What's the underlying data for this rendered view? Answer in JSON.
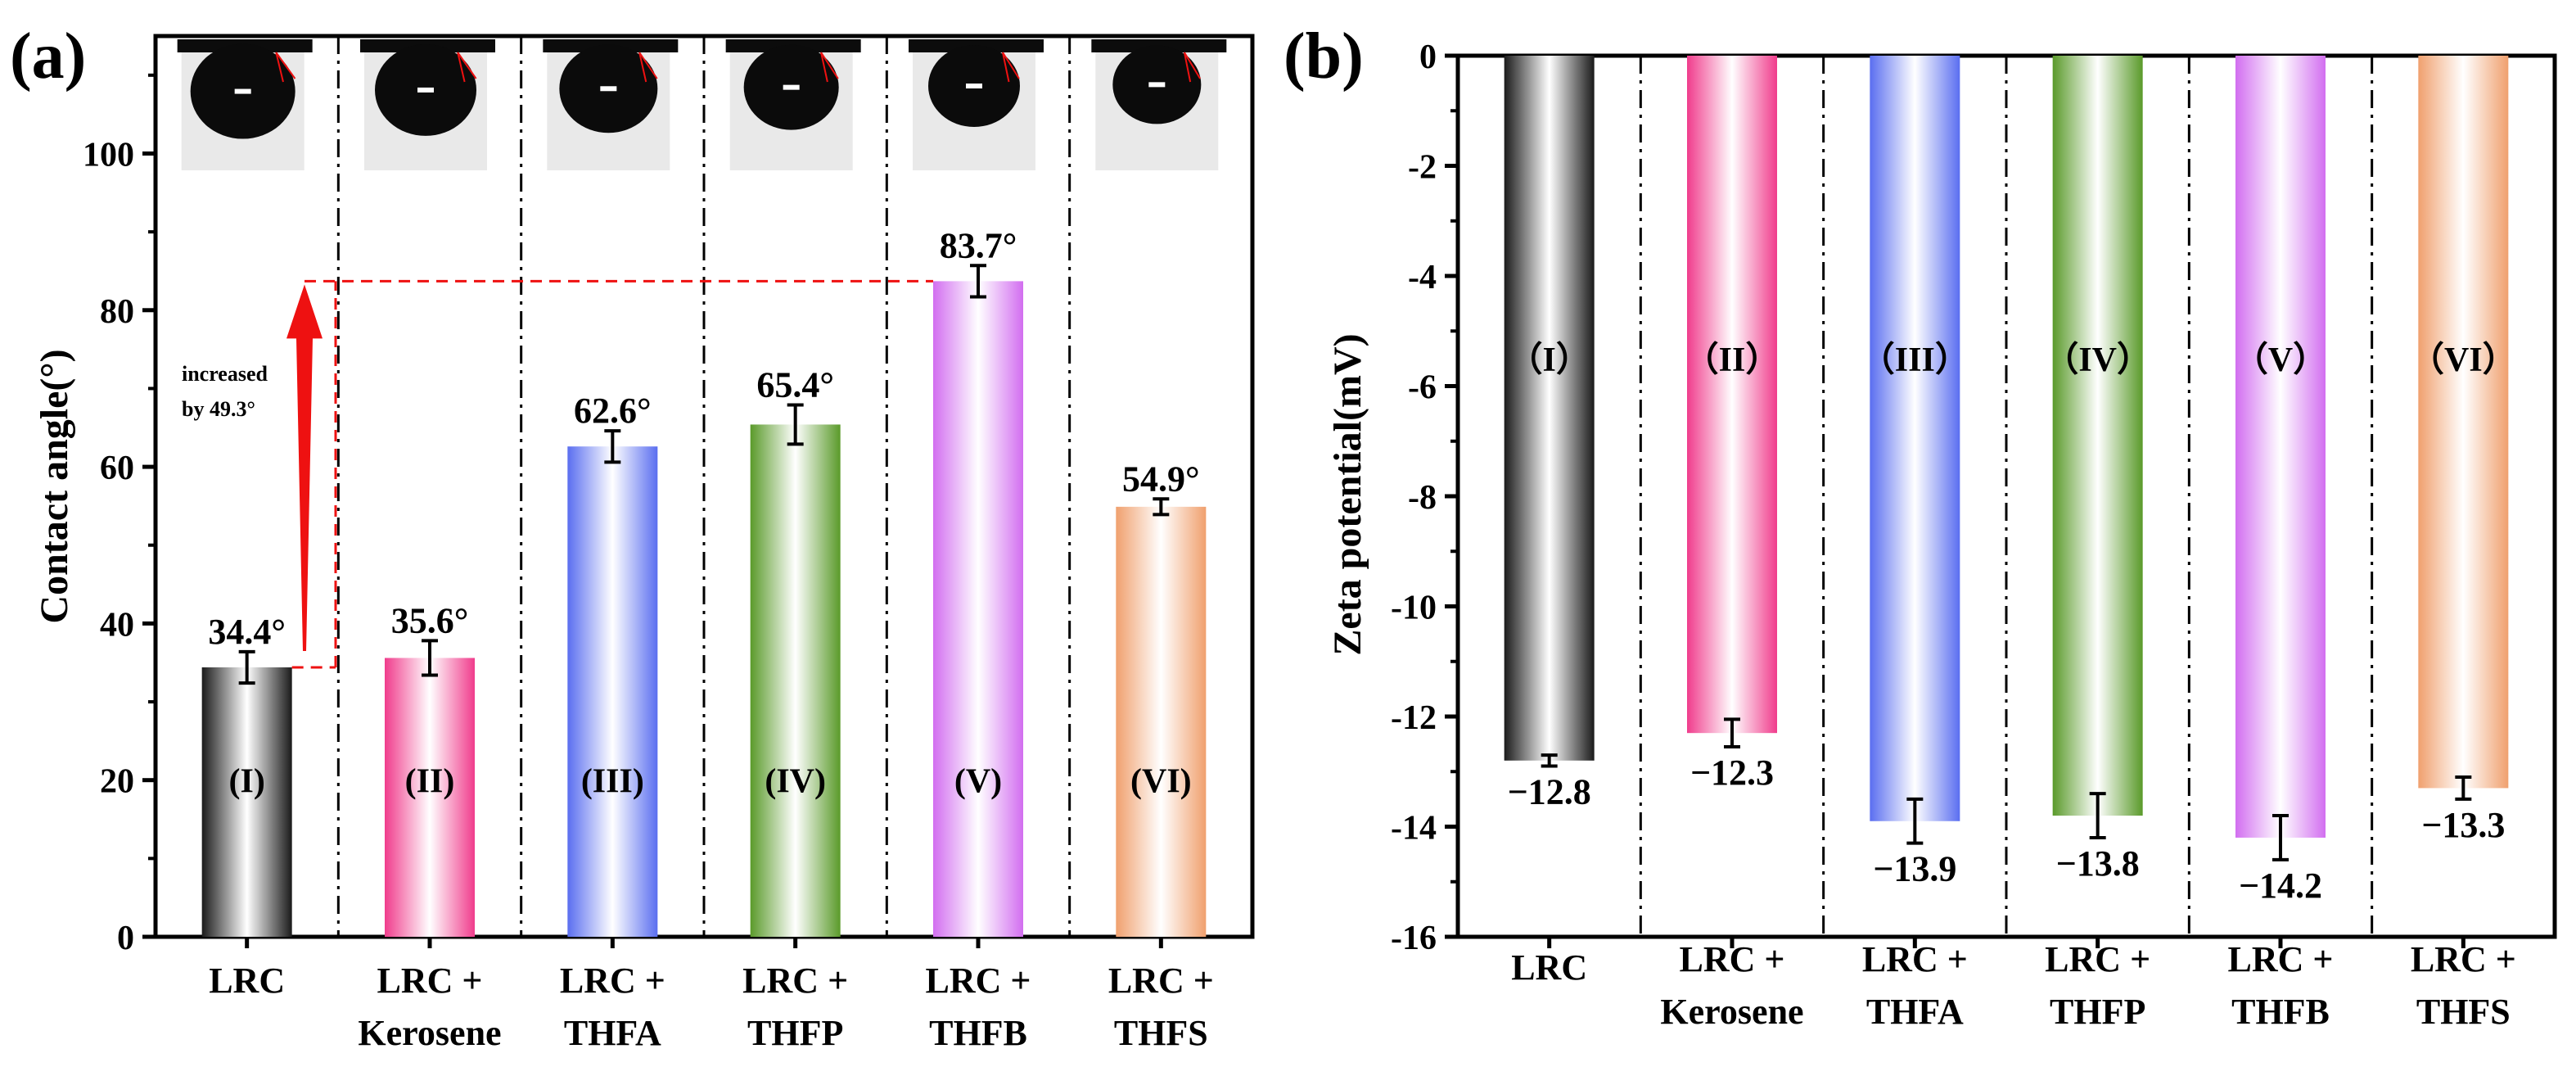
{
  "chart_data": [
    {
      "panel_label": "(a)",
      "type": "bar",
      "ylabel": "Contact angle(°)",
      "ylim": [
        0,
        115
      ],
      "yticks": [
        0,
        20,
        40,
        60,
        80,
        100
      ],
      "grid": false,
      "categories": [
        [
          "LRC",
          ""
        ],
        [
          "LRC +",
          "Kerosene"
        ],
        [
          "LRC +",
          "THFA"
        ],
        [
          "LRC +",
          "THFP"
        ],
        [
          "LRC +",
          "THFB"
        ],
        [
          "LRC +",
          "THFS"
        ]
      ],
      "roman": [
        "(I)",
        "(II)",
        "(III)",
        "(IV)",
        "(V)",
        "(VI)"
      ],
      "values": [
        34.4,
        35.6,
        62.6,
        65.4,
        83.7,
        54.9
      ],
      "errors": [
        2.0,
        2.2,
        2.0,
        2.5,
        2.0,
        1.0
      ],
      "value_labels": [
        "34.4°",
        "35.6°",
        "62.6°",
        "65.4°",
        "83.7°",
        "54.9°"
      ],
      "annotation": {
        "line1": "increased",
        "line2": "by 49.3°",
        "from": 34.4,
        "to": 83.7
      },
      "droplet_images": 6
    },
    {
      "panel_label": "(b)",
      "type": "bar",
      "ylabel": "Zeta potential(mV)",
      "ylim": [
        -16,
        0
      ],
      "yticks": [
        0,
        -2,
        -4,
        -6,
        -8,
        -10,
        -12,
        -14,
        -16
      ],
      "grid": false,
      "categories": [
        [
          "LRC",
          ""
        ],
        [
          "LRC +",
          "Kerosene"
        ],
        [
          "LRC +",
          "THFA"
        ],
        [
          "LRC +",
          "THFP"
        ],
        [
          "LRC +",
          "THFB"
        ],
        [
          "LRC +",
          "THFS"
        ]
      ],
      "roman": [
        "（I）",
        "（II）",
        "（III）",
        "（IV）",
        "（V）",
        "（VI）"
      ],
      "values": [
        -12.8,
        -12.3,
        -13.9,
        -13.8,
        -14.2,
        -13.3
      ],
      "errors": [
        0.1,
        0.25,
        0.4,
        0.4,
        0.4,
        0.2
      ],
      "value_labels": [
        "−12.8",
        "−12.3",
        "−13.9",
        "−13.8",
        "−14.2",
        "−13.3"
      ]
    }
  ],
  "colors": [
    "#1a1a1a",
    "#f03c8c",
    "#5a6ef0",
    "#5a9a2a",
    "#d26ef0",
    "#f0a06e"
  ],
  "annotation_color": "#ee1111",
  "axis_color": "#000000"
}
